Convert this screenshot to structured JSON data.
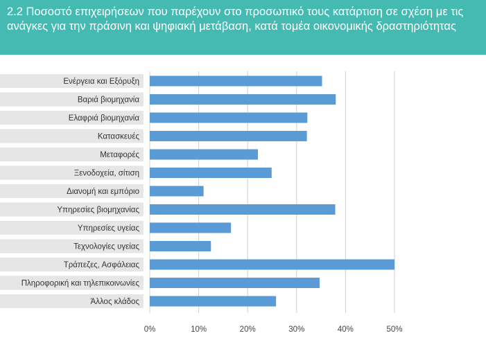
{
  "header": {
    "title": "2.2 Ποσοστό επιχειρήσεων που παρέχουν στο προσωπικό τους κατάρτιση σε σχέση με τις ανάγκες για την πράσινη και ψηφιακή μετάβαση, κατά τομέα οικονομικής δραστηριότητας"
  },
  "colors": {
    "header_bg": "#44bab3",
    "bar": "#5a9bd5",
    "label_band": "#e6e6e6",
    "grid": "#cfcfcf"
  },
  "chart_data": {
    "type": "bar",
    "orientation": "horizontal",
    "title": "2.2 Ποσοστό επιχειρήσεων που παρέχουν στο προσωπικό τους κατάρτιση σε σχέση με τις ανάγκες για την πράσινη και ψηφιακή μετάβαση, κατά τομέα οικονομικής δραστηριότητας",
    "categories": [
      "Ενέργεια και Εξόρυξη",
      "Βαριά βιομηχανία",
      "Ελαφριά βιομηχανία",
      "Κατασκευές",
      "Μεταφορές",
      "Ξενοδοχεία, σίτιση",
      "Διανομή και εμπόριο",
      "Υπηρεσίες βιομηχανίας",
      "Υπηρεσίες υγείας",
      "Τεχνολογίες υγείας",
      "Τράπεζες, Ασφάλειας",
      "Πληροφορική και τηλεπικοινωνίες",
      "Άλλος κλάδος"
    ],
    "values": [
      35.2,
      38.0,
      32.2,
      32.1,
      22.1,
      24.9,
      11.0,
      37.9,
      16.6,
      12.5,
      50.0,
      34.7,
      25.8
    ],
    "xlim": [
      0,
      50
    ],
    "xticks": [
      0,
      10,
      20,
      30,
      40,
      50
    ],
    "xtick_labels": [
      "0%",
      "10%",
      "20%",
      "30%",
      "40%",
      "50%"
    ],
    "xlabel": "",
    "ylabel": "",
    "grid": true,
    "legend": "none"
  }
}
